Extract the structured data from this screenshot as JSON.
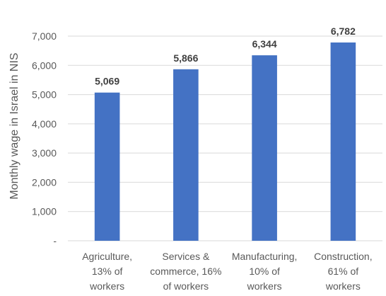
{
  "chart_data": {
    "type": "bar",
    "title": "",
    "ylabel": "Monthly wage in Israel in NIS",
    "xlabel": "",
    "ylim": [
      0,
      7000
    ],
    "yticks": [
      0,
      1000,
      2000,
      3000,
      4000,
      5000,
      6000,
      7000
    ],
    "ytick_labels": [
      "-",
      "1,000",
      "2,000",
      "3,000",
      "4,000",
      "5,000",
      "6,000",
      "7,000"
    ],
    "grid": true,
    "legend": "none",
    "categories": [
      [
        "Agriculture,",
        "13% of",
        "workers"
      ],
      [
        "Services &",
        "commerce, 16%",
        "of workers"
      ],
      [
        "Manufacturing,",
        "10% of",
        "workers"
      ],
      [
        "Construction,",
        "61% of",
        "workers"
      ]
    ],
    "values": [
      5069,
      5866,
      6344,
      6782
    ],
    "value_labels": [
      "5,069",
      "5,866",
      "6,344",
      "6,782"
    ],
    "bar_color": "#4472C4",
    "grid_color": "#D9D9D9",
    "text_color": "#595959"
  }
}
